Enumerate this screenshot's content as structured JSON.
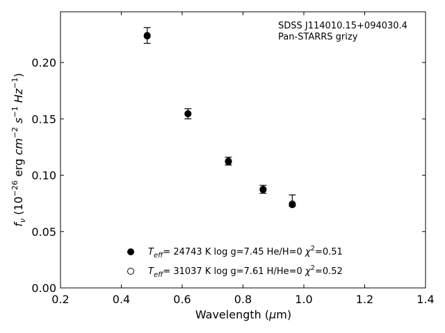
{
  "chart_data": {
    "type": "scatter",
    "title": "",
    "xlabel": "Wavelength (μm)",
    "ylabel": "f_ν (10^-26 erg cm^-2 s^-1 Hz^-1)",
    "xlim": [
      0.2,
      1.4
    ],
    "ylim": [
      0.0,
      0.245
    ],
    "x_ticks": [
      "0.2",
      "0.4",
      "0.6",
      "0.8",
      "1.0",
      "1.2",
      "1.4"
    ],
    "y_ticks": [
      "0.00",
      "0.05",
      "0.10",
      "0.15",
      "0.20"
    ],
    "grid": false,
    "annotations": [
      "SDSS J114010.15+094030.4",
      "Pan-STARRS grizy"
    ],
    "legend_position": "bottom-center",
    "observed": {
      "x": [
        0.485,
        0.619,
        0.752,
        0.866,
        0.962
      ],
      "y": [
        0.224,
        0.1545,
        0.1125,
        0.0875,
        0.0775
      ],
      "yerr": [
        0.007,
        0.0045,
        0.0035,
        0.0035,
        0.005
      ]
    },
    "series": [
      {
        "name": "T_eff= 24743 K  log g=7.45  He/H=0  χ²=0.51",
        "marker": "filled-circle",
        "x": [
          0.485,
          0.619,
          0.752,
          0.866,
          0.962
        ],
        "y": [
          0.224,
          0.1545,
          0.1125,
          0.0875,
          0.0738
        ]
      },
      {
        "name": "T_eff= 31037 K  log g=7.61  H/He=0  χ²=0.52",
        "marker": "open-circle",
        "x": [
          0.485,
          0.619,
          0.752,
          0.866,
          0.962
        ],
        "y": [
          0.2235,
          0.1545,
          0.112,
          0.0872,
          0.0745
        ]
      }
    ],
    "colors": {
      "marker": "#000000",
      "axis": "#000000"
    }
  }
}
